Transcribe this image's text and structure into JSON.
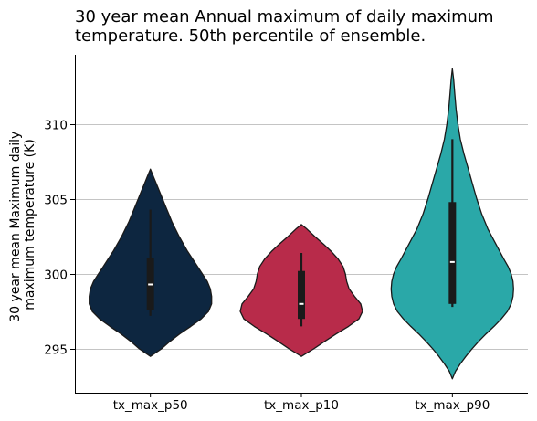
{
  "chart_data": {
    "type": "violin",
    "title": "30 year mean Annual maximum of daily maximum temperature. 50th percentile of ensemble.",
    "title_lines": [
      "30 year mean Annual maximum of daily maximum",
      "temperature. 50th percentile of ensemble."
    ],
    "ylabel_lines": [
      "30 year mean Maximum daily",
      "maximum temperature (K)"
    ],
    "categories": [
      "tx_max_p50",
      "tx_max_p10",
      "tx_max_p90"
    ],
    "ylim": [
      292.2,
      314.5
    ],
    "yticks": [
      295,
      300,
      305,
      310
    ],
    "grid": "y",
    "series": [
      {
        "category": "tx_max_p50",
        "color": "#0d2640",
        "kde_min": 294.5,
        "kde_max": 307.0,
        "whisker_low": 297.2,
        "q1": 297.6,
        "median": 299.3,
        "q3": 301.1,
        "whisker_high": 304.3,
        "profile": [
          [
            294.5,
            0.0
          ],
          [
            295.0,
            0.18
          ],
          [
            295.5,
            0.32
          ],
          [
            296.0,
            0.48
          ],
          [
            296.5,
            0.66
          ],
          [
            297.0,
            0.83
          ],
          [
            297.5,
            0.95
          ],
          [
            298.0,
            1.0
          ],
          [
            298.5,
            1.0
          ],
          [
            299.0,
            0.98
          ],
          [
            299.5,
            0.93
          ],
          [
            300.0,
            0.85
          ],
          [
            300.5,
            0.77
          ],
          [
            301.0,
            0.69
          ],
          [
            301.5,
            0.61
          ],
          [
            302.0,
            0.54
          ],
          [
            302.5,
            0.47
          ],
          [
            303.0,
            0.41
          ],
          [
            303.5,
            0.35
          ],
          [
            304.0,
            0.3
          ],
          [
            304.5,
            0.25
          ],
          [
            305.0,
            0.2
          ],
          [
            305.5,
            0.15
          ],
          [
            306.0,
            0.1
          ],
          [
            306.5,
            0.05
          ],
          [
            307.0,
            0.0
          ]
        ]
      },
      {
        "category": "tx_max_p10",
        "color": "#b82b4a",
        "kde_min": 294.5,
        "kde_max": 303.3,
        "whisker_low": 296.5,
        "q1": 297.0,
        "median": 298.0,
        "q3": 300.2,
        "whisker_high": 301.4,
        "profile": [
          [
            294.5,
            0.0
          ],
          [
            295.0,
            0.2
          ],
          [
            295.5,
            0.38
          ],
          [
            296.0,
            0.57
          ],
          [
            296.5,
            0.77
          ],
          [
            297.0,
            0.94
          ],
          [
            297.5,
            1.0
          ],
          [
            298.0,
            0.97
          ],
          [
            298.5,
            0.87
          ],
          [
            299.0,
            0.78
          ],
          [
            299.5,
            0.74
          ],
          [
            300.0,
            0.72
          ],
          [
            300.5,
            0.68
          ],
          [
            301.0,
            0.6
          ],
          [
            301.5,
            0.49
          ],
          [
            302.0,
            0.36
          ],
          [
            302.5,
            0.22
          ],
          [
            303.0,
            0.09
          ],
          [
            303.3,
            0.0
          ]
        ]
      },
      {
        "category": "tx_max_p90",
        "color": "#2aa8a8",
        "kde_min": 293.0,
        "kde_max": 313.7,
        "whisker_low": 297.8,
        "q1": 298.0,
        "median": 300.8,
        "q3": 304.8,
        "whisker_high": 309.0,
        "profile": [
          [
            293.0,
            0.0
          ],
          [
            293.5,
            0.05
          ],
          [
            294.0,
            0.13
          ],
          [
            294.5,
            0.22
          ],
          [
            295.0,
            0.32
          ],
          [
            295.5,
            0.43
          ],
          [
            296.0,
            0.55
          ],
          [
            296.5,
            0.68
          ],
          [
            297.0,
            0.8
          ],
          [
            297.5,
            0.9
          ],
          [
            298.0,
            0.96
          ],
          [
            298.5,
            0.99
          ],
          [
            299.0,
            1.0
          ],
          [
            299.5,
            0.99
          ],
          [
            300.0,
            0.96
          ],
          [
            300.5,
            0.91
          ],
          [
            301.0,
            0.84
          ],
          [
            302.0,
            0.71
          ],
          [
            303.0,
            0.58
          ],
          [
            304.0,
            0.48
          ],
          [
            305.0,
            0.4
          ],
          [
            306.0,
            0.33
          ],
          [
            307.0,
            0.26
          ],
          [
            308.0,
            0.19
          ],
          [
            309.0,
            0.13
          ],
          [
            310.0,
            0.09
          ],
          [
            311.0,
            0.06
          ],
          [
            312.0,
            0.04
          ],
          [
            313.0,
            0.02
          ],
          [
            313.7,
            0.0
          ]
        ]
      }
    ]
  }
}
